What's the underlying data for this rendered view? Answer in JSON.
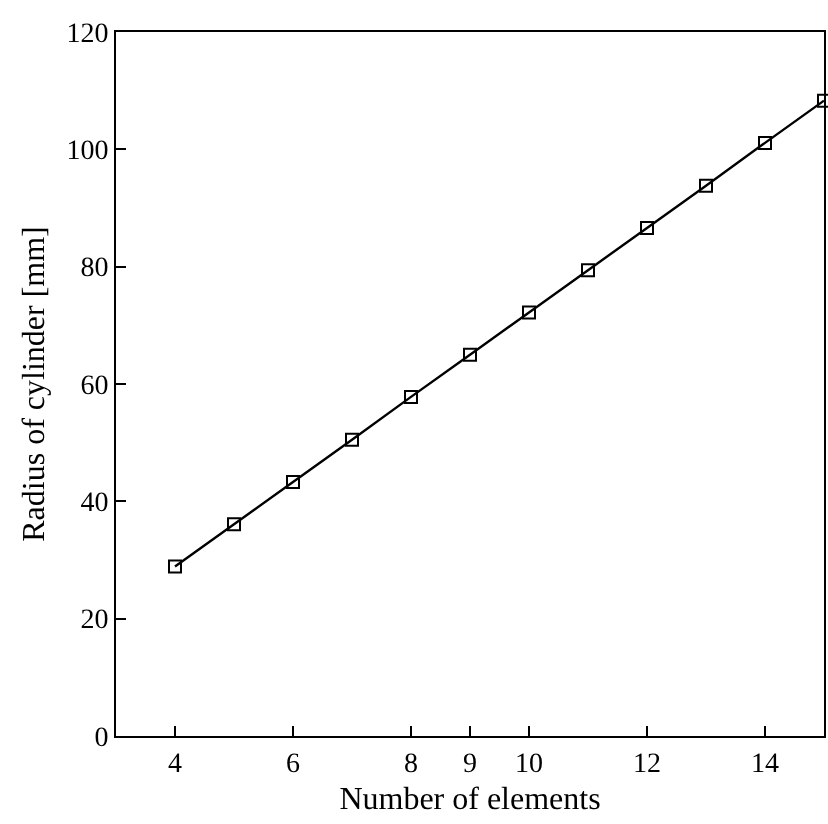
{
  "chart_data": {
    "type": "line",
    "xlabel": "Number of elements",
    "ylabel": "Radius of cylinder [mm]",
    "x": [
      4,
      5,
      6,
      7,
      8,
      9,
      10,
      11,
      12,
      13,
      14,
      15
    ],
    "series": [
      {
        "color": "#000000",
        "values": [
          28.9,
          36.1,
          43.3,
          50.5,
          57.8,
          65.0,
          72.2,
          79.4,
          86.6,
          93.8,
          101.1,
          108.3
        ]
      }
    ],
    "xlim": [
      3,
      15
    ],
    "xticks": [
      4,
      6,
      8,
      9,
      10,
      12,
      14
    ],
    "ylim": [
      0,
      120
    ],
    "yticks": [
      0,
      20,
      40,
      60,
      80,
      100,
      120
    ],
    "marker": "square",
    "line_style": "solid"
  }
}
